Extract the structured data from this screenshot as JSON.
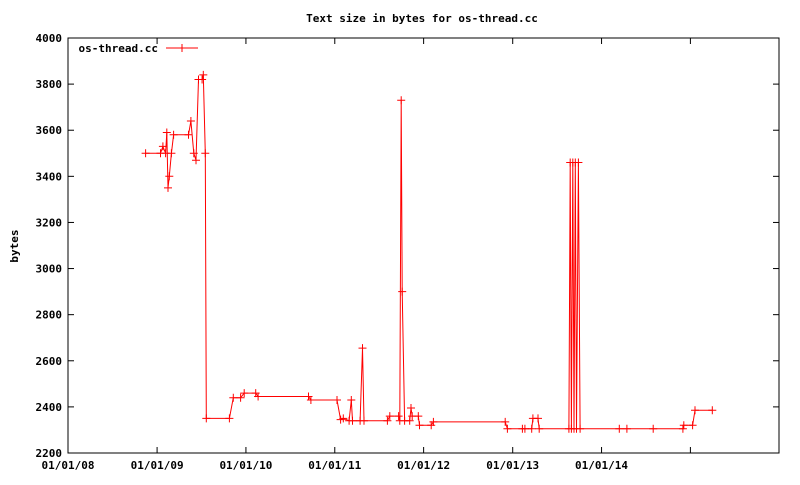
{
  "chart_data": {
    "type": "line",
    "title": "Text size in bytes for os-thread.cc",
    "xlabel": "",
    "ylabel": "bytes",
    "ylim": [
      2200,
      4000
    ],
    "xlim": [
      "2008-01-01",
      "2015-12-31"
    ],
    "yticks": [
      2200,
      2400,
      2600,
      2800,
      3000,
      3200,
      3400,
      3600,
      3800,
      4000
    ],
    "xticks": [
      {
        "date": "2008-01-01",
        "label": "01/01/08"
      },
      {
        "date": "2009-01-01",
        "label": "01/01/09"
      },
      {
        "date": "2010-01-01",
        "label": "01/01/10"
      },
      {
        "date": "2011-01-01",
        "label": "01/01/11"
      },
      {
        "date": "2012-01-01",
        "label": "01/01/12"
      },
      {
        "date": "2013-01-01",
        "label": "01/01/13"
      },
      {
        "date": "2014-01-01",
        "label": "01/01/14"
      },
      {
        "date": "2015-01-01",
        "label": ""
      }
    ],
    "grid": false,
    "legend_position": "top-left",
    "series": [
      {
        "name": "os-thread.cc",
        "color": "#ff0000",
        "points": [
          [
            "2008-11-15",
            3500
          ],
          [
            "2009-01-15",
            3500
          ],
          [
            "2009-01-25",
            3530
          ],
          [
            "2009-02-05",
            3500
          ],
          [
            "2009-02-10",
            3590
          ],
          [
            "2009-02-15",
            3350
          ],
          [
            "2009-02-20",
            3400
          ],
          [
            "2009-03-01",
            3500
          ],
          [
            "2009-03-10",
            3580
          ],
          [
            "2009-05-10",
            3580
          ],
          [
            "2009-05-20",
            3640
          ],
          [
            "2009-06-01",
            3500
          ],
          [
            "2009-06-10",
            3470
          ],
          [
            "2009-06-20",
            3820
          ],
          [
            "2009-07-05",
            3820
          ],
          [
            "2009-07-10",
            3840
          ],
          [
            "2009-07-18",
            3500
          ],
          [
            "2009-07-22",
            2350
          ],
          [
            "2009-10-25",
            2350
          ],
          [
            "2009-11-10",
            2440
          ],
          [
            "2009-12-10",
            2440
          ],
          [
            "2009-12-25",
            2460
          ],
          [
            "2010-02-10",
            2460
          ],
          [
            "2010-02-20",
            2445
          ],
          [
            "2010-09-15",
            2445
          ],
          [
            "2010-09-25",
            2430
          ],
          [
            "2011-01-10",
            2430
          ],
          [
            "2011-01-25",
            2345
          ],
          [
            "2011-02-05",
            2350
          ],
          [
            "2011-03-01",
            2340
          ],
          [
            "2011-03-10",
            2430
          ],
          [
            "2011-03-15",
            2340
          ],
          [
            "2011-04-15",
            2340
          ],
          [
            "2011-04-25",
            2655
          ],
          [
            "2011-05-01",
            2340
          ],
          [
            "2011-08-05",
            2340
          ],
          [
            "2011-08-15",
            2360
          ],
          [
            "2011-09-20",
            2360
          ],
          [
            "2011-09-25",
            2340
          ],
          [
            "2011-10-01",
            3730
          ],
          [
            "2011-10-05",
            2900
          ],
          [
            "2011-10-15",
            2340
          ],
          [
            "2011-11-05",
            2340
          ],
          [
            "2011-11-10",
            2395
          ],
          [
            "2011-11-15",
            2360
          ],
          [
            "2011-12-10",
            2360
          ],
          [
            "2011-12-15",
            2320
          ],
          [
            "2012-02-01",
            2320
          ],
          [
            "2012-02-10",
            2335
          ],
          [
            "2012-12-01",
            2335
          ],
          [
            "2012-12-10",
            2305
          ],
          [
            "2013-02-10",
            2305
          ],
          [
            "2013-02-20",
            2305
          ],
          [
            "2013-03-20",
            2305
          ],
          [
            "2013-03-25",
            2350
          ],
          [
            "2013-04-15",
            2350
          ],
          [
            "2013-04-20",
            2305
          ],
          [
            "2013-08-20",
            2305
          ],
          [
            "2013-08-25",
            3460
          ],
          [
            "2013-08-30",
            2305
          ],
          [
            "2013-09-05",
            3460
          ],
          [
            "2013-09-10",
            2305
          ],
          [
            "2013-09-15",
            3460
          ],
          [
            "2013-09-20",
            2305
          ],
          [
            "2013-09-28",
            3460
          ],
          [
            "2013-10-05",
            2305
          ],
          [
            "2014-03-15",
            2305
          ],
          [
            "2014-04-15",
            2305
          ],
          [
            "2014-08-01",
            2305
          ],
          [
            "2014-12-01",
            2305
          ],
          [
            "2014-12-05",
            2320
          ],
          [
            "2015-01-10",
            2320
          ],
          [
            "2015-01-20",
            2385
          ],
          [
            "2015-04-01",
            2385
          ]
        ]
      }
    ]
  }
}
